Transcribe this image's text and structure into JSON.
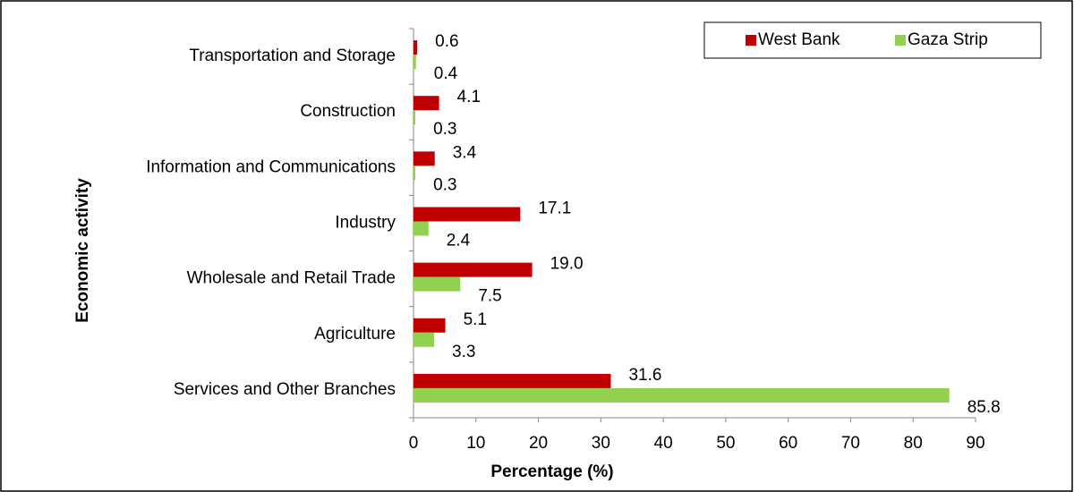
{
  "chart_data": {
    "type": "bar",
    "orientation": "horizontal",
    "x_label": "Percentage (%)",
    "y_label": "Economic activity",
    "categories": [
      "Transportation and Storage",
      "Construction",
      "Information and Communications",
      "Industry",
      "Wholesale and Retail Trade",
      "Agriculture",
      "Services and Other Branches"
    ],
    "series": [
      {
        "name": "West Bank",
        "color": "#c00000",
        "values": [
          0.6,
          4.1,
          3.4,
          17.1,
          19.0,
          5.1,
          31.6
        ],
        "value_labels": [
          "0.6",
          "4.1",
          "3.4",
          "17.1",
          "19.0",
          "5.1",
          "31.6"
        ]
      },
      {
        "name": "Gaza Strip",
        "color": "#92d050",
        "values": [
          0.4,
          0.3,
          0.3,
          2.4,
          7.5,
          3.3,
          85.8
        ],
        "value_labels": [
          "0.4",
          "0.3",
          "0.3",
          "2.4",
          "7.5",
          "3.3",
          "85.8"
        ]
      }
    ],
    "xlim": [
      0,
      90
    ],
    "xticks": [
      0,
      10,
      20,
      30,
      40,
      50,
      60,
      70,
      80,
      90
    ],
    "legend": "top-right"
  }
}
